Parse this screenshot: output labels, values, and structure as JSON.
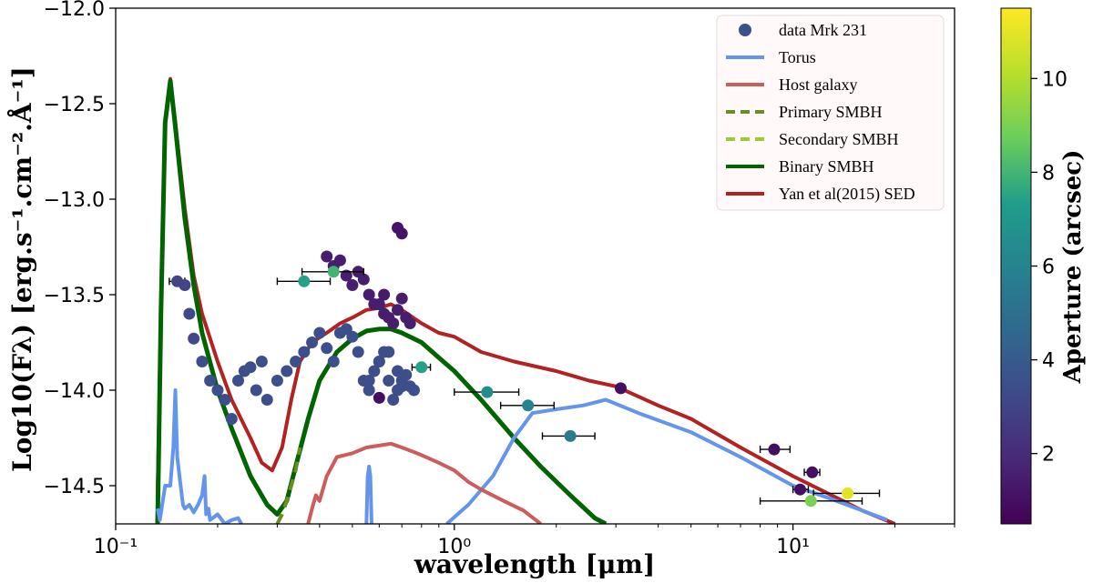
{
  "chart_data": {
    "type": "line+scatter",
    "title": "",
    "xlabel": "wavelength [μm]",
    "ylabel": "Log10(Fλ) [erg.s⁻¹.cm⁻².Å⁻¹]",
    "xscale": "log",
    "xlim": [
      0.1,
      30
    ],
    "ylim": [
      -14.7,
      -12.0
    ],
    "x_ticks": [
      {
        "value": 0.1,
        "label": "10⁻¹"
      },
      {
        "value": 1,
        "label": "10⁰"
      },
      {
        "value": 10,
        "label": "10¹"
      }
    ],
    "y_ticks": [
      {
        "value": -12.0,
        "label": "−12.0"
      },
      {
        "value": -12.5,
        "label": "−12.5"
      },
      {
        "value": -13.0,
        "label": "−13.0"
      },
      {
        "value": -13.5,
        "label": "−13.5"
      },
      {
        "value": -14.0,
        "label": "−14.0"
      },
      {
        "value": -14.5,
        "label": "−14.5"
      }
    ],
    "legend": {
      "placement": "top-right",
      "entries": [
        {
          "label": "data Mrk 231",
          "kind": "marker",
          "color": "#3b528b"
        },
        {
          "label": "Torus",
          "kind": "line",
          "color": "#6495ed",
          "dash": "solid"
        },
        {
          "label": "Host galaxy",
          "kind": "line",
          "color": "#cd5c5c",
          "dash": "solid"
        },
        {
          "label": "Primary SMBH",
          "kind": "line",
          "color": "#6b8e23",
          "dash": "dashed"
        },
        {
          "label": "Secondary SMBH",
          "kind": "line",
          "color": "#9acd32",
          "dash": "dashed"
        },
        {
          "label": "Binary SMBH",
          "kind": "line",
          "color": "#006400",
          "dash": "solid"
        },
        {
          "label": "Yan et al(2015) SED",
          "kind": "line",
          "color": "#b22222",
          "dash": "solid"
        }
      ]
    },
    "colorbar": {
      "label": "Aperture (arcsec)",
      "range": [
        0.5,
        11.5
      ],
      "ticks": [
        2,
        4,
        6,
        8,
        10
      ],
      "colors": [
        "#440154",
        "#482777",
        "#3f4a8a",
        "#31678e",
        "#26838f",
        "#1f9d8a",
        "#6cce5a",
        "#b6de2b",
        "#fee825"
      ]
    },
    "series": [
      {
        "name": "Yan et al(2015) SED",
        "color": "#b22222",
        "width": 4,
        "x": [
          0.133,
          0.136,
          0.14,
          0.145,
          0.15,
          0.16,
          0.17,
          0.18,
          0.2,
          0.22,
          0.25,
          0.27,
          0.29,
          0.31,
          0.33,
          0.35,
          0.38,
          0.42,
          0.46,
          0.5,
          0.55,
          0.6,
          0.65,
          0.7,
          0.8,
          0.9,
          1.0,
          1.2,
          1.5,
          2.0,
          2.5,
          3.0,
          4.0,
          5.0,
          7.0,
          10.0,
          13.0,
          16.0,
          20.0
        ],
        "y": [
          -14.55,
          -13.6,
          -12.6,
          -12.37,
          -12.6,
          -13.05,
          -13.4,
          -13.6,
          -13.85,
          -14.05,
          -14.25,
          -14.38,
          -14.42,
          -14.3,
          -14.05,
          -13.85,
          -13.75,
          -13.7,
          -13.65,
          -13.62,
          -13.58,
          -13.57,
          -13.55,
          -13.58,
          -13.65,
          -13.7,
          -13.72,
          -13.8,
          -13.85,
          -13.9,
          -13.95,
          -13.98,
          -14.08,
          -14.15,
          -14.3,
          -14.45,
          -14.55,
          -14.63,
          -14.7
        ]
      },
      {
        "name": "Binary SMBH",
        "color": "#006400",
        "width": 5,
        "x": [
          0.133,
          0.136,
          0.14,
          0.145,
          0.15,
          0.16,
          0.17,
          0.18,
          0.2,
          0.22,
          0.25,
          0.28,
          0.3,
          0.32,
          0.34,
          0.37,
          0.4,
          0.45,
          0.5,
          0.55,
          0.6,
          0.65,
          0.7,
          0.8,
          0.9,
          1.0,
          1.2,
          1.5,
          1.8,
          2.2,
          2.6,
          2.8
        ],
        "y": [
          -14.7,
          -13.6,
          -12.6,
          -12.38,
          -12.62,
          -13.1,
          -13.45,
          -13.7,
          -14.0,
          -14.2,
          -14.45,
          -14.6,
          -14.65,
          -14.58,
          -14.4,
          -14.15,
          -13.95,
          -13.8,
          -13.73,
          -13.69,
          -13.68,
          -13.68,
          -13.7,
          -13.75,
          -13.83,
          -13.9,
          -14.05,
          -14.25,
          -14.4,
          -14.55,
          -14.67,
          -14.7
        ]
      },
      {
        "name": "Primary SMBH",
        "color": "#6b8e23",
        "width": 4,
        "dash": "12,8",
        "x": [
          0.3,
          0.31,
          0.32,
          0.33,
          0.34,
          0.35
        ],
        "y": [
          -14.7,
          -14.65,
          -14.58,
          -14.5,
          -14.42,
          -14.3
        ]
      },
      {
        "name": "Torus",
        "color": "#6495ed",
        "width": 4,
        "x": [
          0.133,
          0.135,
          0.14,
          0.145,
          0.148,
          0.15,
          0.152,
          0.155,
          0.158,
          0.16,
          0.165,
          0.17,
          0.175,
          0.18,
          0.183,
          0.185,
          0.188,
          0.19,
          0.2,
          0.21,
          0.22,
          0.23,
          0.235
        ],
        "y": [
          -14.62,
          -14.68,
          -14.5,
          -14.5,
          -14.3,
          -14.0,
          -14.35,
          -14.48,
          -14.6,
          -14.62,
          -14.6,
          -14.64,
          -14.6,
          -14.55,
          -14.45,
          -14.65,
          -14.62,
          -14.68,
          -14.65,
          -14.7,
          -14.68,
          -14.67,
          -14.7
        ]
      },
      {
        "name": "Torus (IR)",
        "color": "#6495ed",
        "width": 4,
        "x": [
          0.55,
          0.555,
          0.56,
          0.565,
          0.57
        ],
        "y": [
          -14.7,
          -14.45,
          -14.4,
          -14.45,
          -14.7
        ]
      },
      {
        "name": "Torus (MIR)",
        "color": "#6495ed",
        "width": 4,
        "x": [
          0.95,
          1.1,
          1.3,
          1.5,
          1.7,
          2.0,
          2.4,
          2.8,
          3.5,
          5.0,
          7.0,
          10.0,
          13.0,
          16.0,
          19.0
        ],
        "y": [
          -14.7,
          -14.6,
          -14.45,
          -14.25,
          -14.12,
          -14.1,
          -14.08,
          -14.05,
          -14.12,
          -14.22,
          -14.35,
          -14.5,
          -14.57,
          -14.63,
          -14.68
        ]
      },
      {
        "name": "Host galaxy",
        "color": "#cd5c5c",
        "width": 4,
        "x": [
          0.37,
          0.38,
          0.39,
          0.4,
          0.42,
          0.45,
          0.5,
          0.55,
          0.6,
          0.65,
          0.7,
          0.75,
          0.8,
          0.9,
          1.0,
          1.1,
          1.2,
          1.4,
          1.6,
          1.8
        ],
        "y": [
          -14.7,
          -14.62,
          -14.55,
          -14.58,
          -14.45,
          -14.35,
          -14.33,
          -14.3,
          -14.29,
          -14.28,
          -14.3,
          -14.32,
          -14.34,
          -14.38,
          -14.42,
          -14.48,
          -14.52,
          -14.58,
          -14.63,
          -14.7
        ]
      }
    ],
    "points": {
      "name": "data Mrk 231",
      "x": [
        0.152,
        0.16,
        0.165,
        0.17,
        0.18,
        0.19,
        0.2,
        0.21,
        0.22,
        0.23,
        0.24,
        0.25,
        0.26,
        0.27,
        0.28,
        0.3,
        0.32,
        0.34,
        0.36,
        0.38,
        0.4,
        0.42,
        0.44,
        0.46,
        0.48,
        0.5,
        0.52,
        0.54,
        0.56,
        0.58,
        0.6,
        0.62,
        0.64,
        0.66,
        0.68,
        0.7,
        0.56,
        0.6,
        0.64,
        0.68,
        0.7,
        0.72,
        0.74,
        0.76,
        0.42,
        0.44,
        0.46,
        0.48,
        0.5,
        0.52,
        0.54,
        0.56,
        0.58,
        0.6,
        0.62,
        0.64,
        0.66,
        0.68,
        0.7,
        0.72,
        0.74,
        0.68,
        0.7,
        0.62,
        0.6,
        0.36,
        0.44,
        0.8,
        1.25,
        1.65,
        2.2,
        3.1,
        8.8,
        10.5,
        11.4,
        14.5,
        11.3
      ],
      "y": [
        -13.43,
        -13.45,
        -13.6,
        -13.73,
        -13.85,
        -13.95,
        -14.0,
        -14.05,
        -14.15,
        -13.95,
        -13.9,
        -13.88,
        -14.0,
        -13.85,
        -14.05,
        -13.95,
        -13.9,
        -13.85,
        -13.8,
        -13.75,
        -13.7,
        -13.78,
        -13.85,
        -13.7,
        -13.68,
        -13.72,
        -13.8,
        -13.95,
        -14.0,
        -13.9,
        -13.85,
        -13.8,
        -13.95,
        -14.05,
        -13.9,
        -13.98,
        -13.95,
        -13.85,
        -13.8,
        -14.0,
        -13.95,
        -13.92,
        -13.98,
        -14.0,
        -13.3,
        -13.35,
        -13.32,
        -13.4,
        -13.45,
        -13.38,
        -13.42,
        -13.5,
        -13.55,
        -13.55,
        -13.6,
        -13.62,
        -13.65,
        -13.58,
        -13.52,
        -13.62,
        -13.65,
        -13.15,
        -13.18,
        -13.5,
        -14.04,
        -13.43,
        -13.38,
        -13.88,
        -14.01,
        -14.08,
        -14.24,
        -13.99,
        -14.31,
        -14.52,
        -14.43,
        -14.54,
        -14.58
      ],
      "aperture": [
        3,
        3,
        3.2,
        3.2,
        3.5,
        3.5,
        3.5,
        3.5,
        3.5,
        3.5,
        3.5,
        3.5,
        3.5,
        3.5,
        3.5,
        3.5,
        3.5,
        3.5,
        3.5,
        3.5,
        3.5,
        3.5,
        3.5,
        3.5,
        3.5,
        3.5,
        3.5,
        3.5,
        3.5,
        3.5,
        3.5,
        3.5,
        3.5,
        3.5,
        3.5,
        3.5,
        3.5,
        3.5,
        3.5,
        3.5,
        3.5,
        3.5,
        3.5,
        3.5,
        1.5,
        1.5,
        1.5,
        1.5,
        1.5,
        1.5,
        1.5,
        1.5,
        1.5,
        1.5,
        1.5,
        1.5,
        1.5,
        1.5,
        1.5,
        1.5,
        1.5,
        1.2,
        1.2,
        1.4,
        1.0,
        7.5,
        8.0,
        7.5,
        6.5,
        6.0,
        5.5,
        1.0,
        1.0,
        1.0,
        1.0,
        11.0,
        9.0
      ],
      "xerr_low": [
        0.008,
        null,
        null,
        null,
        null,
        null,
        null,
        null,
        null,
        null,
        null,
        null,
        null,
        null,
        null,
        null,
        null,
        null,
        null,
        null,
        null,
        null,
        null,
        null,
        null,
        null,
        null,
        null,
        null,
        null,
        null,
        null,
        null,
        null,
        null,
        null,
        null,
        null,
        null,
        null,
        null,
        null,
        null,
        null,
        null,
        null,
        null,
        null,
        null,
        null,
        null,
        null,
        null,
        null,
        null,
        null,
        null,
        null,
        null,
        null,
        null,
        null,
        null,
        null,
        null,
        0.06,
        0.085,
        0.05,
        0.25,
        0.28,
        0.38,
        null,
        0.8,
        0.5,
        0.6,
        3.0,
        3.3
      ],
      "xerr_high": [
        0.008,
        null,
        null,
        null,
        null,
        null,
        null,
        null,
        null,
        null,
        null,
        null,
        null,
        null,
        null,
        null,
        null,
        null,
        null,
        null,
        null,
        null,
        null,
        null,
        null,
        null,
        null,
        null,
        null,
        null,
        null,
        null,
        null,
        null,
        null,
        null,
        null,
        null,
        null,
        null,
        null,
        null,
        null,
        null,
        null,
        null,
        null,
        null,
        null,
        null,
        null,
        null,
        null,
        null,
        null,
        null,
        null,
        null,
        null,
        null,
        null,
        null,
        null,
        null,
        null,
        0.07,
        0.1,
        0.05,
        0.3,
        0.32,
        0.4,
        null,
        1.0,
        0.6,
        0.6,
        3.5,
        4.7
      ]
    }
  }
}
